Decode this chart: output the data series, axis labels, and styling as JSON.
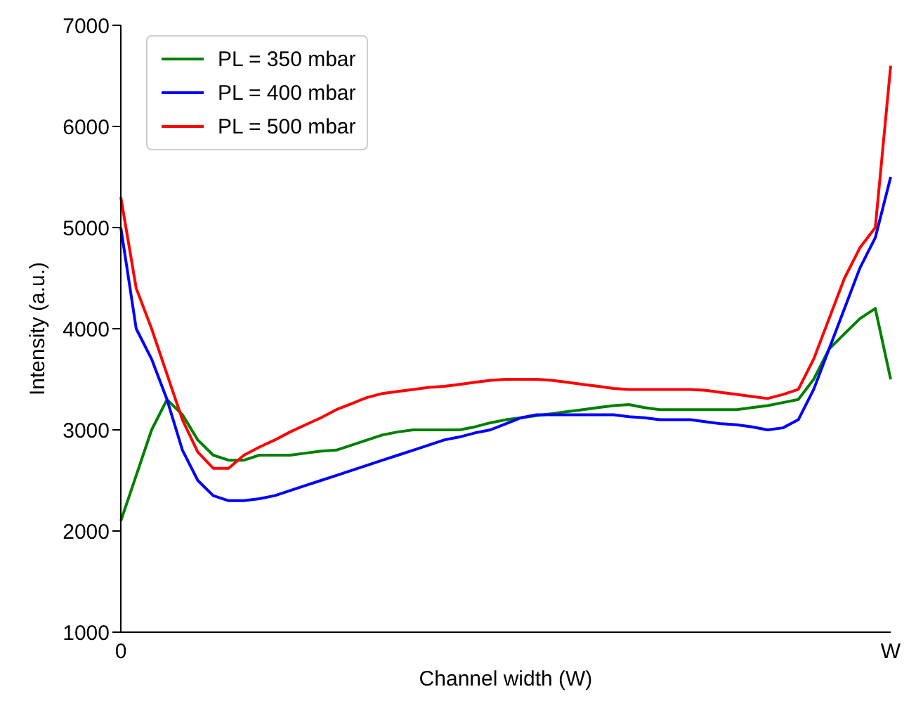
{
  "chart_data": {
    "type": "line",
    "xlabel": "Channel width (W)",
    "ylabel": "Intensity (a.u.)",
    "categories": [
      "0",
      null,
      null,
      null,
      null,
      null,
      null,
      null,
      null,
      null,
      null,
      null,
      null,
      null,
      null,
      null,
      null,
      null,
      null,
      null,
      null,
      null,
      null,
      null,
      null,
      null,
      null,
      null,
      null,
      null,
      null,
      null,
      null,
      null,
      null,
      null,
      null,
      null,
      null,
      null,
      null,
      null,
      null,
      null,
      null,
      null,
      null,
      null,
      null,
      null,
      "W"
    ],
    "ylim": [
      1000,
      7000
    ],
    "yticks": [
      1000,
      2000,
      3000,
      4000,
      5000,
      6000,
      7000
    ],
    "grid": false,
    "legend": "top left",
    "marker": "none",
    "line_style": "solid",
    "series": [
      {
        "name": "PL = 350 mbar",
        "color": "#008000",
        "values": [
          2100,
          2550,
          3000,
          3300,
          3150,
          2900,
          2750,
          2700,
          2700,
          2750,
          2750,
          2750,
          2770,
          2790,
          2800,
          2850,
          2900,
          2950,
          2980,
          3000,
          3000,
          3000,
          3000,
          3030,
          3070,
          3100,
          3120,
          3140,
          3160,
          3180,
          3200,
          3220,
          3240,
          3250,
          3220,
          3200,
          3200,
          3200,
          3200,
          3200,
          3200,
          3220,
          3240,
          3270,
          3300,
          3500,
          3800,
          3950,
          4100,
          4200,
          3500
        ]
      },
      {
        "name": "PL = 400 mbar",
        "color": "#0000ff",
        "values": [
          5000,
          4000,
          3700,
          3300,
          2800,
          2500,
          2350,
          2300,
          2300,
          2320,
          2350,
          2400,
          2450,
          2500,
          2550,
          2600,
          2650,
          2700,
          2750,
          2800,
          2850,
          2900,
          2930,
          2970,
          3000,
          3060,
          3120,
          3150,
          3150,
          3150,
          3150,
          3150,
          3150,
          3130,
          3120,
          3100,
          3100,
          3100,
          3080,
          3060,
          3050,
          3030,
          3000,
          3020,
          3100,
          3400,
          3800,
          4200,
          4600,
          4900,
          5500
        ]
      },
      {
        "name": "PL = 500 mbar",
        "color": "#ff0000",
        "values": [
          5300,
          4400,
          4000,
          3550,
          3100,
          2780,
          2620,
          2620,
          2750,
          2830,
          2900,
          2980,
          3050,
          3120,
          3200,
          3260,
          3320,
          3360,
          3380,
          3400,
          3420,
          3430,
          3450,
          3470,
          3490,
          3500,
          3500,
          3500,
          3490,
          3470,
          3450,
          3430,
          3410,
          3400,
          3400,
          3400,
          3400,
          3400,
          3390,
          3370,
          3350,
          3330,
          3310,
          3350,
          3400,
          3700,
          4100,
          4500,
          4800,
          5000,
          6600
        ]
      }
    ]
  }
}
